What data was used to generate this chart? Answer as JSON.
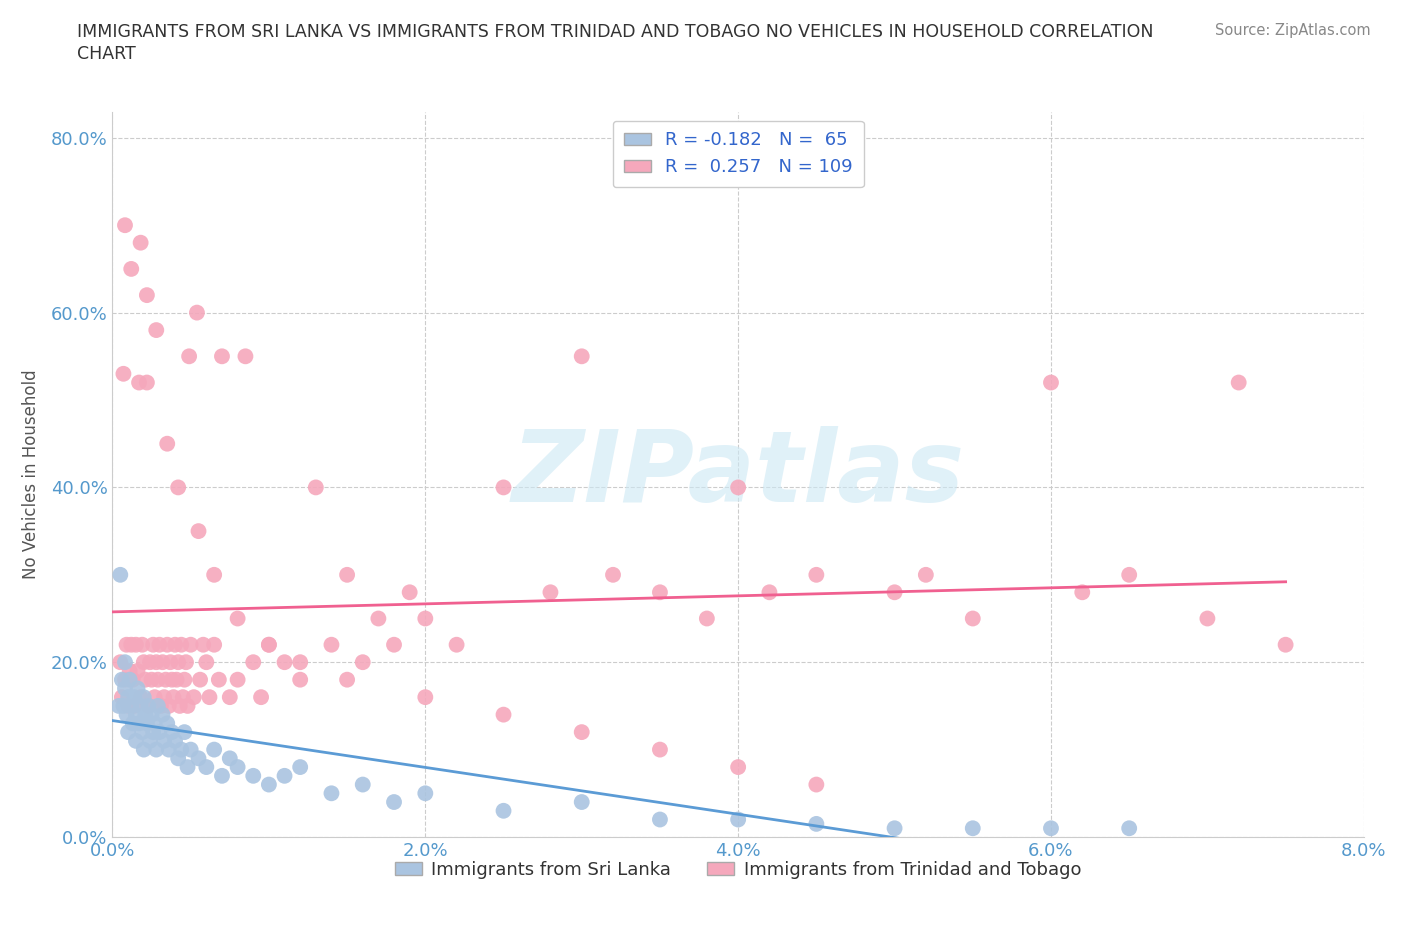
{
  "title_line1": "IMMIGRANTS FROM SRI LANKA VS IMMIGRANTS FROM TRINIDAD AND TOBAGO NO VEHICLES IN HOUSEHOLD CORRELATION",
  "title_line2": "CHART",
  "source": "Source: ZipAtlas.com",
  "ylabel": "No Vehicles in Household",
  "xlim": [
    0.0,
    8.0
  ],
  "ylim": [
    0.0,
    83.0
  ],
  "xticks": [
    0.0,
    2.0,
    4.0,
    6.0,
    8.0
  ],
  "xtick_labels": [
    "0.0%",
    "2.0%",
    "4.0%",
    "6.0%",
    "8.0%"
  ],
  "yticks": [
    0,
    20,
    40,
    60,
    80
  ],
  "ytick_labels": [
    "0.0%",
    "20.0%",
    "40.0%",
    "60.0%",
    "80.0%"
  ],
  "sri_lanka_color": "#aac4e0",
  "trinidad_color": "#f5a8bc",
  "sri_lanka_R": -0.182,
  "sri_lanka_N": 65,
  "trinidad_R": 0.257,
  "trinidad_N": 109,
  "sri_lanka_line_color": "#5b9bd5",
  "trinidad_line_color": "#f06090",
  "watermark": "ZIPatlas",
  "legend_label_1": "Immigrants from Sri Lanka",
  "legend_label_2": "Immigrants from Trinidad and Tobago",
  "sl_x": [
    0.05,
    0.06,
    0.07,
    0.08,
    0.09,
    0.1,
    0.1,
    0.11,
    0.12,
    0.13,
    0.14,
    0.15,
    0.15,
    0.16,
    0.17,
    0.18,
    0.19,
    0.2,
    0.2,
    0.21,
    0.22,
    0.23,
    0.24,
    0.25,
    0.26,
    0.27,
    0.28,
    0.29,
    0.3,
    0.32,
    0.33,
    0.35,
    0.36,
    0.38,
    0.4,
    0.42,
    0.44,
    0.46,
    0.48,
    0.5,
    0.55,
    0.6,
    0.65,
    0.7,
    0.75,
    0.8,
    0.9,
    1.0,
    1.1,
    1.2,
    1.4,
    1.6,
    1.8,
    2.0,
    2.5,
    3.0,
    3.5,
    4.0,
    4.5,
    5.0,
    5.5,
    6.0,
    6.5,
    0.04,
    0.08
  ],
  "sl_y": [
    30.0,
    18.0,
    15.0,
    17.0,
    14.0,
    16.0,
    12.0,
    18.0,
    15.0,
    13.0,
    16.0,
    14.0,
    11.0,
    17.0,
    13.0,
    15.0,
    12.0,
    16.0,
    10.0,
    14.0,
    13.0,
    15.0,
    11.0,
    14.0,
    12.0,
    13.0,
    10.0,
    15.0,
    12.0,
    14.0,
    11.0,
    13.0,
    10.0,
    12.0,
    11.0,
    9.0,
    10.0,
    12.0,
    8.0,
    10.0,
    9.0,
    8.0,
    10.0,
    7.0,
    9.0,
    8.0,
    7.0,
    6.0,
    7.0,
    8.0,
    5.0,
    6.0,
    4.0,
    5.0,
    3.0,
    4.0,
    2.0,
    2.0,
    1.5,
    1.0,
    1.0,
    1.0,
    1.0,
    15.0,
    20.0
  ],
  "tt_x": [
    0.05,
    0.06,
    0.07,
    0.08,
    0.09,
    0.1,
    0.11,
    0.12,
    0.13,
    0.14,
    0.15,
    0.16,
    0.17,
    0.18,
    0.19,
    0.2,
    0.21,
    0.22,
    0.23,
    0.24,
    0.25,
    0.26,
    0.27,
    0.28,
    0.29,
    0.3,
    0.31,
    0.32,
    0.33,
    0.34,
    0.35,
    0.36,
    0.37,
    0.38,
    0.39,
    0.4,
    0.41,
    0.42,
    0.43,
    0.44,
    0.45,
    0.46,
    0.47,
    0.48,
    0.49,
    0.5,
    0.52,
    0.54,
    0.56,
    0.58,
    0.6,
    0.62,
    0.65,
    0.68,
    0.7,
    0.75,
    0.8,
    0.85,
    0.9,
    0.95,
    1.0,
    1.1,
    1.2,
    1.3,
    1.4,
    1.5,
    1.6,
    1.7,
    1.8,
    1.9,
    2.0,
    2.2,
    2.5,
    2.8,
    3.0,
    3.2,
    3.5,
    3.8,
    4.0,
    4.2,
    4.5,
    5.0,
    5.2,
    5.5,
    6.0,
    6.2,
    6.5,
    7.0,
    7.2,
    7.5,
    0.08,
    0.12,
    0.18,
    0.22,
    0.28,
    0.35,
    0.42,
    0.55,
    0.65,
    0.8,
    1.0,
    1.2,
    1.5,
    2.0,
    2.5,
    3.0,
    3.5,
    4.0,
    4.5
  ],
  "tt_y": [
    20.0,
    16.0,
    53.0,
    18.0,
    22.0,
    15.0,
    19.0,
    22.0,
    18.0,
    15.0,
    22.0,
    19.0,
    52.0,
    16.0,
    22.0,
    20.0,
    18.0,
    52.0,
    15.0,
    20.0,
    18.0,
    22.0,
    16.0,
    20.0,
    18.0,
    22.0,
    15.0,
    20.0,
    16.0,
    18.0,
    22.0,
    15.0,
    20.0,
    18.0,
    16.0,
    22.0,
    18.0,
    20.0,
    15.0,
    22.0,
    16.0,
    18.0,
    20.0,
    15.0,
    55.0,
    22.0,
    16.0,
    60.0,
    18.0,
    22.0,
    20.0,
    16.0,
    22.0,
    18.0,
    55.0,
    16.0,
    18.0,
    55.0,
    20.0,
    16.0,
    22.0,
    20.0,
    18.0,
    40.0,
    22.0,
    30.0,
    20.0,
    25.0,
    22.0,
    28.0,
    25.0,
    22.0,
    40.0,
    28.0,
    55.0,
    30.0,
    28.0,
    25.0,
    40.0,
    28.0,
    30.0,
    28.0,
    30.0,
    25.0,
    52.0,
    28.0,
    30.0,
    25.0,
    52.0,
    22.0,
    70.0,
    65.0,
    68.0,
    62.0,
    58.0,
    45.0,
    40.0,
    35.0,
    30.0,
    25.0,
    22.0,
    20.0,
    18.0,
    16.0,
    14.0,
    12.0,
    10.0,
    8.0,
    6.0
  ]
}
